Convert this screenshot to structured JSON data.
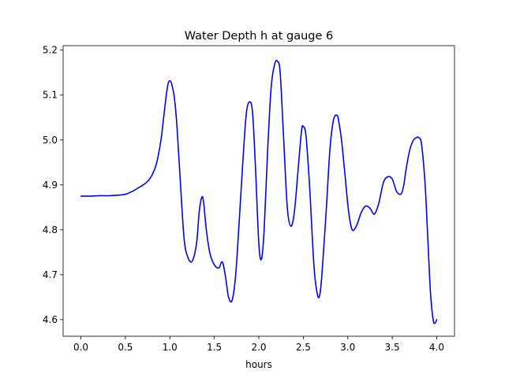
{
  "chart_data": {
    "type": "line",
    "title": "Water Depth h at gauge 6",
    "xlabel": "hours",
    "ylabel": "",
    "xlim": [
      -0.2,
      4.2
    ],
    "ylim": [
      4.563,
      5.21
    ],
    "grid": false,
    "legend": "none",
    "xticks": [
      0.0,
      0.5,
      1.0,
      1.5,
      2.0,
      2.5,
      3.0,
      3.5,
      4.0
    ],
    "xtick_labels": [
      "0.0",
      "0.5",
      "1.0",
      "1.5",
      "2.0",
      "2.5",
      "3.0",
      "3.5",
      "4.0"
    ],
    "yticks": [
      4.6,
      4.7,
      4.8,
      4.9,
      5.0,
      5.1,
      5.2
    ],
    "ytick_labels": [
      "4.6",
      "4.7",
      "4.8",
      "4.9",
      "5.0",
      "5.1",
      "5.2"
    ],
    "colors": {
      "line": "#0000ff",
      "axes": "#000000",
      "background": "#ffffff"
    },
    "series": [
      {
        "x": [
          0.0,
          0.1,
          0.2,
          0.3,
          0.4,
          0.5,
          0.55,
          0.6,
          0.65,
          0.7,
          0.75,
          0.8,
          0.85,
          0.9,
          0.93,
          0.96,
          0.98,
          1.0,
          1.02,
          1.05,
          1.08,
          1.12,
          1.16,
          1.2,
          1.25,
          1.3,
          1.33,
          1.36,
          1.38,
          1.41,
          1.45,
          1.5,
          1.55,
          1.58,
          1.6,
          1.63,
          1.66,
          1.7,
          1.74,
          1.78,
          1.82,
          1.86,
          1.9,
          1.93,
          1.96,
          2.0,
          2.03,
          2.06,
          2.1,
          2.14,
          2.18,
          2.21,
          2.24,
          2.28,
          2.32,
          2.36,
          2.4,
          2.44,
          2.48,
          2.5,
          2.53,
          2.57,
          2.62,
          2.66,
          2.69,
          2.72,
          2.76,
          2.8,
          2.84,
          2.88,
          2.9,
          2.93,
          2.97,
          3.01,
          3.05,
          3.1,
          3.15,
          3.2,
          3.25,
          3.3,
          3.35,
          3.4,
          3.45,
          3.5,
          3.55,
          3.6,
          3.63,
          3.66,
          3.7,
          3.74,
          3.78,
          3.8,
          3.83,
          3.87,
          3.9,
          3.93,
          3.96,
          3.98,
          4.0
        ],
        "y": [
          4.875,
          4.875,
          4.876,
          4.876,
          4.877,
          4.879,
          4.883,
          4.888,
          4.894,
          4.9,
          4.908,
          4.922,
          4.948,
          5.0,
          5.05,
          5.1,
          5.125,
          5.132,
          5.125,
          5.095,
          5.03,
          4.9,
          4.78,
          4.74,
          4.73,
          4.77,
          4.84,
          4.873,
          4.86,
          4.8,
          4.748,
          4.722,
          4.715,
          4.728,
          4.723,
          4.69,
          4.65,
          4.643,
          4.7,
          4.82,
          4.95,
          5.06,
          5.085,
          5.06,
          4.95,
          4.77,
          4.735,
          4.8,
          4.98,
          5.12,
          5.17,
          5.175,
          5.15,
          5.0,
          4.85,
          4.808,
          4.84,
          4.93,
          5.02,
          5.03,
          5.01,
          4.9,
          4.72,
          4.655,
          4.66,
          4.73,
          4.85,
          4.98,
          5.045,
          5.055,
          5.04,
          5.0,
          4.92,
          4.84,
          4.8,
          4.81,
          4.838,
          4.853,
          4.848,
          4.835,
          4.86,
          4.905,
          4.918,
          4.913,
          4.885,
          4.88,
          4.9,
          4.94,
          4.98,
          5.0,
          5.006,
          5.005,
          4.99,
          4.9,
          4.78,
          4.66,
          4.6,
          4.592,
          4.6
        ]
      }
    ]
  }
}
